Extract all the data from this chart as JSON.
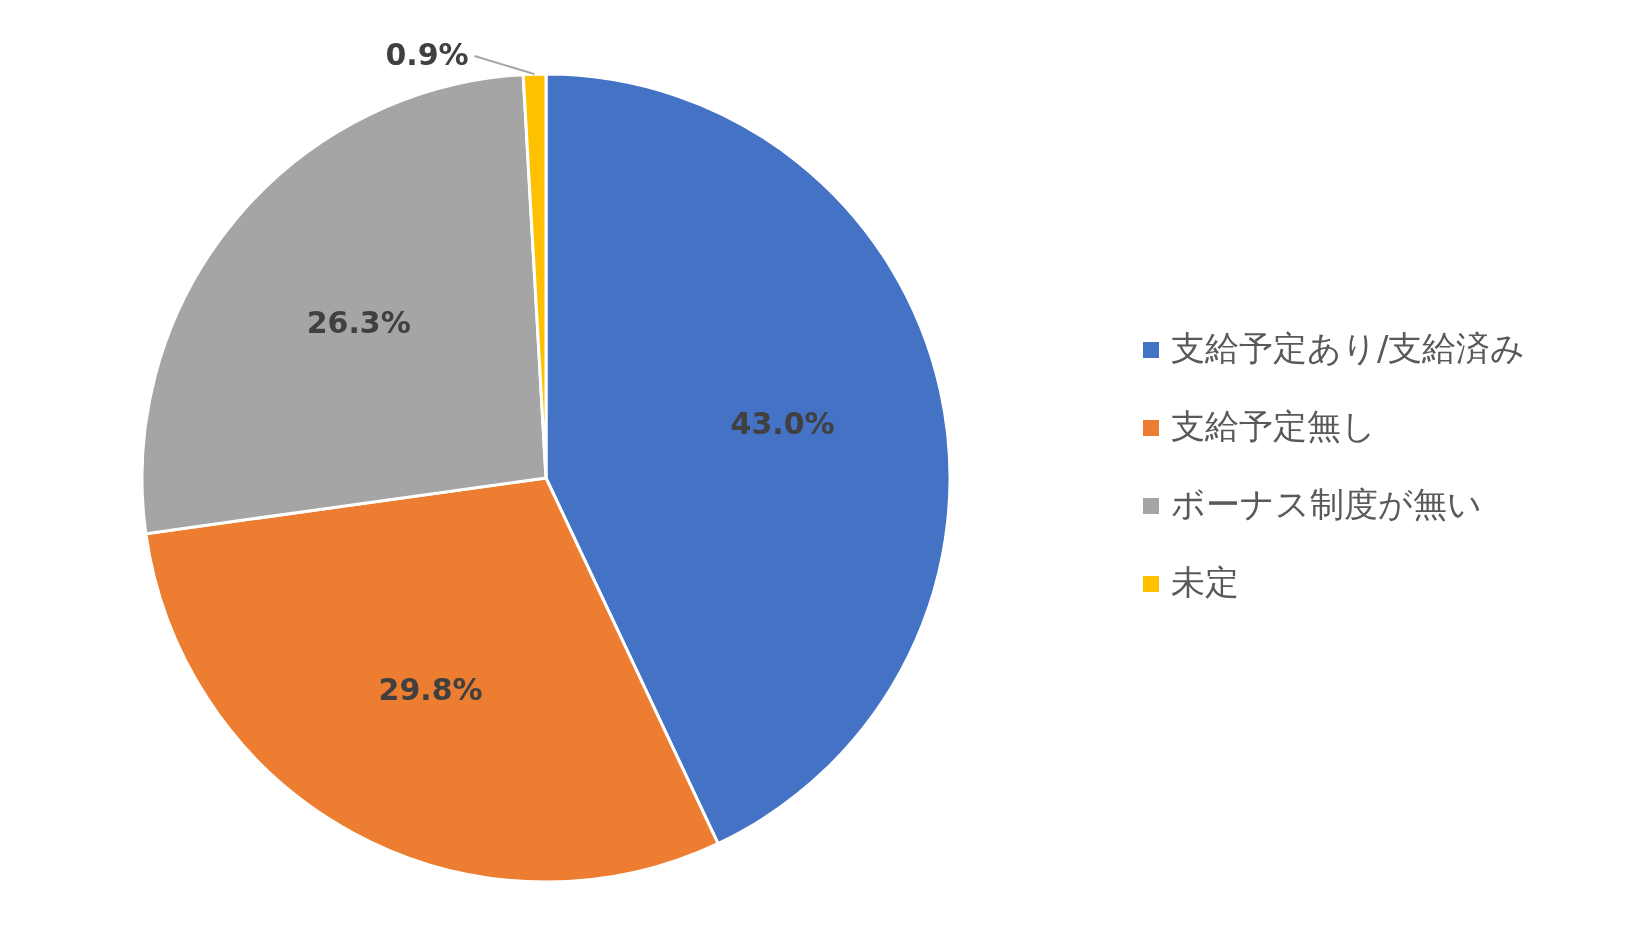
{
  "chart_data": {
    "type": "pie",
    "categories": [
      "支給予定あり/支給済み",
      "支給予定無し",
      "ボーナス制度が無い",
      "未定"
    ],
    "values": [
      43.0,
      29.8,
      26.3,
      0.9
    ],
    "colors": [
      "#4472c4",
      "#ed7d31",
      "#a5a5a5",
      "#ffc000"
    ],
    "value_labels": [
      "43.0%",
      "29.8%",
      "26.3%",
      "0.9%"
    ],
    "legend": "right"
  }
}
